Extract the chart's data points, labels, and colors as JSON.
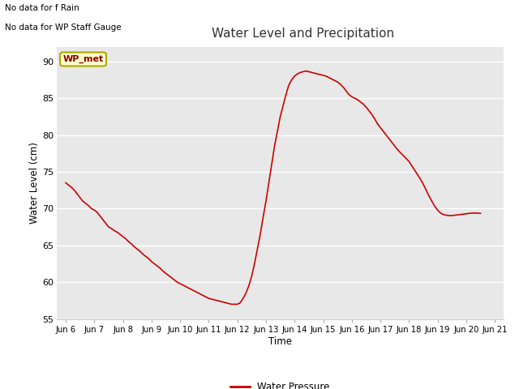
{
  "title": "Water Level and Precipitation",
  "xlabel": "Time",
  "ylabel": "Water Level (cm)",
  "ylim": [
    55,
    92
  ],
  "yticks": [
    55,
    60,
    65,
    70,
    75,
    80,
    85,
    90
  ],
  "x_labels": [
    "Jun 6",
    "Jun 7",
    "Jun 8",
    "Jun 9",
    "Jun 10",
    "Jun 11",
    "Jun 12",
    "Jun 13",
    "Jun 14",
    "Jun 15",
    "Jun 16",
    "Jun 17",
    "Jun 18",
    "Jun 19",
    "Jun 20",
    "Jun 21"
  ],
  "no_data_text1": "No data for f Rain",
  "no_data_text2": "No data for WP Staff Gauge",
  "legend_box_label": "WP_met",
  "legend_box_facecolor": "#ffffcc",
  "legend_box_edgecolor": "#aaa800",
  "legend_box_textcolor": "#8b0000",
  "line_color": "#cc0000",
  "line_label": "Water Pressure",
  "background_color": "#e8e8e8",
  "x_values": [
    0,
    0.1,
    0.2,
    0.3,
    0.4,
    0.5,
    0.6,
    0.7,
    0.8,
    0.9,
    1.0,
    1.1,
    1.2,
    1.3,
    1.4,
    1.5,
    1.6,
    1.7,
    1.8,
    1.9,
    2.0,
    2.1,
    2.2,
    2.3,
    2.4,
    2.5,
    2.6,
    2.7,
    2.8,
    2.9,
    3.0,
    3.1,
    3.2,
    3.3,
    3.4,
    3.5,
    3.6,
    3.7,
    3.8,
    3.9,
    4.0,
    4.1,
    4.2,
    4.3,
    4.4,
    4.5,
    4.6,
    4.7,
    4.8,
    4.9,
    5.0,
    5.1,
    5.2,
    5.3,
    5.4,
    5.5,
    5.6,
    5.7,
    5.8,
    5.9,
    6.0,
    6.1,
    6.2,
    6.3,
    6.4,
    6.5,
    6.6,
    6.7,
    6.8,
    6.9,
    7.0,
    7.1,
    7.2,
    7.3,
    7.4,
    7.5,
    7.6,
    7.7,
    7.8,
    7.9,
    8.0,
    8.1,
    8.2,
    8.3,
    8.4,
    8.5,
    8.6,
    8.7,
    8.8,
    8.9,
    9.0,
    9.1,
    9.2,
    9.3,
    9.4,
    9.5,
    9.6,
    9.7,
    9.8,
    9.9,
    10.0,
    10.1,
    10.2,
    10.3,
    10.4,
    10.5,
    10.6,
    10.7,
    10.8,
    10.9,
    11.0,
    11.1,
    11.2,
    11.3,
    11.4,
    11.5,
    11.6,
    11.7,
    11.8,
    11.9,
    12.0,
    12.1,
    12.2,
    12.3,
    12.4,
    12.5,
    12.6,
    12.7,
    12.8,
    12.9,
    13.0,
    13.1,
    13.2,
    13.3,
    13.4,
    13.5,
    13.6,
    13.7,
    13.8,
    13.9,
    14.0,
    14.1,
    14.2,
    14.3,
    14.4,
    14.5
  ],
  "y_values": [
    73.5,
    73.2,
    72.9,
    72.5,
    72.0,
    71.5,
    71.0,
    70.7,
    70.4,
    70.0,
    69.8,
    69.5,
    69.0,
    68.5,
    68.0,
    67.5,
    67.3,
    67.0,
    66.8,
    66.5,
    66.2,
    65.9,
    65.5,
    65.2,
    64.8,
    64.5,
    64.2,
    63.8,
    63.5,
    63.2,
    62.8,
    62.5,
    62.2,
    61.9,
    61.5,
    61.2,
    60.9,
    60.6,
    60.3,
    60.0,
    59.8,
    59.6,
    59.4,
    59.2,
    59.0,
    58.8,
    58.6,
    58.4,
    58.2,
    58.0,
    57.8,
    57.7,
    57.6,
    57.5,
    57.4,
    57.3,
    57.2,
    57.1,
    57.0,
    57.0,
    57.0,
    57.2,
    57.8,
    58.5,
    59.5,
    60.8,
    62.5,
    64.5,
    66.5,
    68.8,
    71.0,
    73.5,
    76.0,
    78.5,
    80.5,
    82.5,
    84.0,
    85.5,
    86.8,
    87.5,
    88.0,
    88.3,
    88.5,
    88.6,
    88.7,
    88.6,
    88.5,
    88.4,
    88.3,
    88.2,
    88.1,
    88.0,
    87.8,
    87.6,
    87.4,
    87.2,
    86.9,
    86.5,
    86.0,
    85.5,
    85.2,
    85.0,
    84.8,
    84.5,
    84.2,
    83.8,
    83.3,
    82.8,
    82.2,
    81.5,
    81.0,
    80.5,
    80.0,
    79.5,
    79.0,
    78.5,
    78.0,
    77.6,
    77.2,
    76.8,
    76.4,
    75.8,
    75.2,
    74.6,
    74.0,
    73.3,
    72.5,
    71.7,
    71.0,
    70.3,
    69.8,
    69.4,
    69.2,
    69.1,
    69.05,
    69.05,
    69.1,
    69.15,
    69.2,
    69.25,
    69.3,
    69.35,
    69.38,
    69.4,
    69.38,
    69.35
  ]
}
